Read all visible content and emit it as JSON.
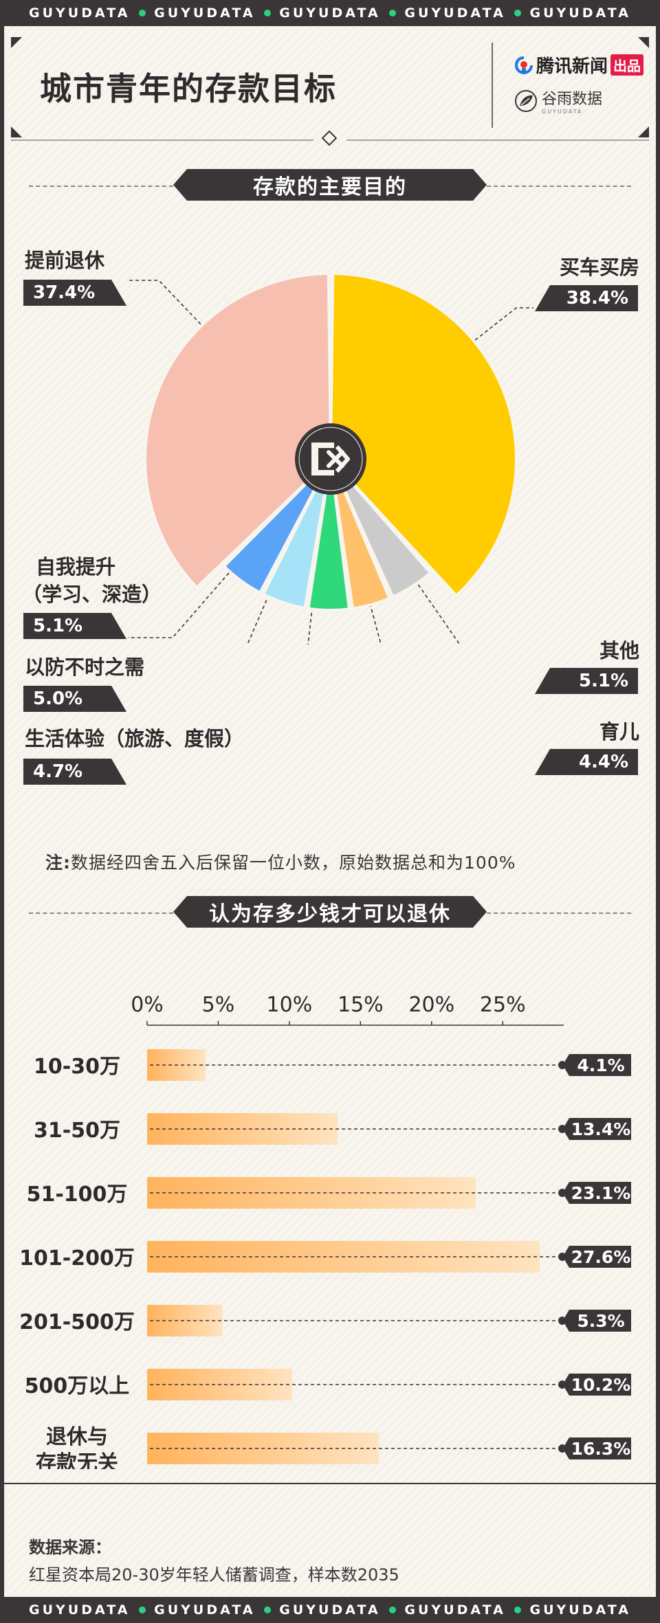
{
  "ticker": {
    "word": "GUYUDATA"
  },
  "header": {
    "title": "城市青年的存款目标",
    "logo_tencent": "腾讯新闻",
    "logo_tencent_badge": "出品",
    "logo_guyu": "谷雨数据",
    "logo_guyu_sub": "GUYUDATA"
  },
  "section1": {
    "title": "存款的主要目的"
  },
  "section2": {
    "title": "认为存多少钱才可以退休"
  },
  "note": {
    "prefix": "注:",
    "text": "数据经四舍五入后保留一位小数，原始数据总和为100%"
  },
  "source": {
    "title": "数据来源：",
    "text": "红星资本局20-30岁年轻人储蓄调查，样本数2035"
  },
  "chart_data": [
    {
      "type": "pie",
      "title": "存款的主要目的",
      "slices": [
        {
          "label": "买车买房",
          "value": 38.4,
          "display": "38.4%",
          "color": "#ffcc00"
        },
        {
          "label": "其他",
          "value": 5.1,
          "display": "5.1%",
          "color": "#cbcbcb"
        },
        {
          "label": "育儿",
          "value": 4.4,
          "display": "4.4%",
          "color": "#ffc06b"
        },
        {
          "label": "生活体验（旅游、度假）",
          "value": 4.7,
          "display": "4.7%",
          "color": "#2fd87a"
        },
        {
          "label": "以防不时之需",
          "value": 5.0,
          "display": "5.0%",
          "color": "#a6e2f8"
        },
        {
          "label": "自我提升（学习、深造）",
          "value": 5.1,
          "display": "5.1%",
          "color": "#5aa3f7"
        },
        {
          "label": "提前退休",
          "value": 37.4,
          "display": "37.4%",
          "color": "#f6bfb0"
        }
      ],
      "label_lines": [
        {
          "label": "自我提升",
          "label2": "（学习、深造）"
        },
        {
          "label": "生活体验（旅游、度假）"
        }
      ]
    },
    {
      "type": "bar",
      "orientation": "horizontal",
      "title": "认为存多少钱才可以退休",
      "categories": [
        "10-30万",
        "31-50万",
        "51-100万",
        "101-200万",
        "201-500万",
        "500万以上",
        "退休与存款无关"
      ],
      "category_lines": [
        [
          "10-30万"
        ],
        [
          "31-50万"
        ],
        [
          "51-100万"
        ],
        [
          "101-200万"
        ],
        [
          "201-500万"
        ],
        [
          "500万以上"
        ],
        [
          "退休与",
          "存款无关"
        ]
      ],
      "values": [
        4.1,
        13.4,
        23.1,
        27.6,
        5.3,
        10.2,
        16.3
      ],
      "value_labels": [
        "4.1%",
        "13.4%",
        "23.1%",
        "27.6%",
        "5.3%",
        "10.2%",
        "16.3%"
      ],
      "xlim": [
        0,
        29
      ],
      "ticks": [
        0,
        5,
        10,
        15,
        20,
        25
      ],
      "tick_labels": [
        "0%",
        "5%",
        "10%",
        "15%",
        "20%",
        "25%"
      ],
      "bar_gradient": [
        "#ffb35c",
        "#ffe3c0"
      ]
    }
  ]
}
